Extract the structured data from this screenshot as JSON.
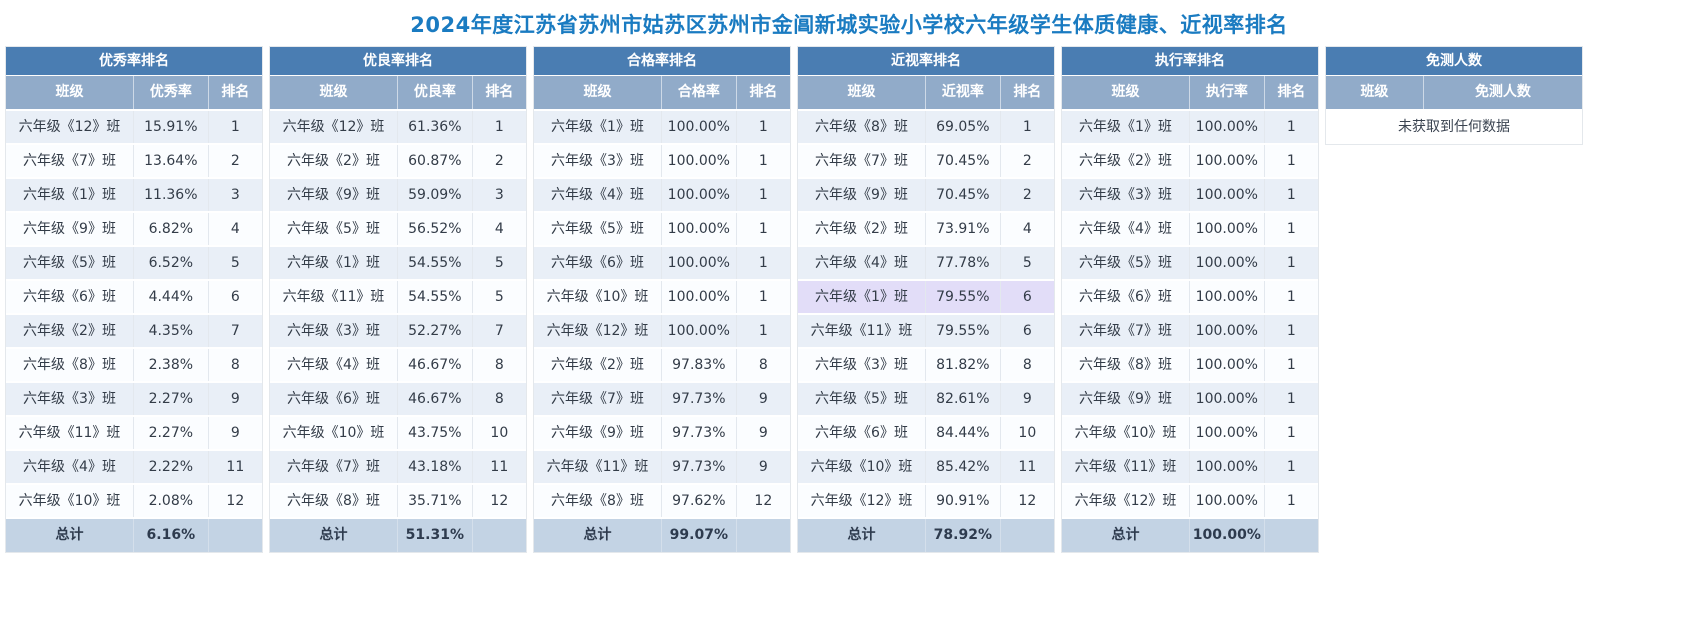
{
  "page_title": "2024年度江苏省苏州市姑苏区苏州市金阊新城实验小学校六年级学生体质健康、近视率排名",
  "colors": {
    "title_text": "#1a7bc1",
    "table_header_bg": "#4a7db2",
    "table_subheader_bg": "#91abc9",
    "row_odd_bg": "#e9eff7",
    "row_even_bg": "#fbfdff",
    "total_row_bg": "#c3d3e4",
    "highlight_row_bg": "#e2ddf8"
  },
  "total_label": "总计",
  "tables": [
    {
      "title": "优秀率排名",
      "columns": [
        "班级",
        "优秀率",
        "排名"
      ],
      "rows": [
        [
          "六年级《12》班",
          "15.91%",
          "1"
        ],
        [
          "六年级《7》班",
          "13.64%",
          "2"
        ],
        [
          "六年级《1》班",
          "11.36%",
          "3"
        ],
        [
          "六年级《9》班",
          "6.82%",
          "4"
        ],
        [
          "六年级《5》班",
          "6.52%",
          "5"
        ],
        [
          "六年级《6》班",
          "4.44%",
          "6"
        ],
        [
          "六年级《2》班",
          "4.35%",
          "7"
        ],
        [
          "六年级《8》班",
          "2.38%",
          "8"
        ],
        [
          "六年级《3》班",
          "2.27%",
          "9"
        ],
        [
          "六年级《11》班",
          "2.27%",
          "9"
        ],
        [
          "六年级《4》班",
          "2.22%",
          "11"
        ],
        [
          "六年级《10》班",
          "2.08%",
          "12"
        ]
      ],
      "total": [
        "总计",
        "6.16%",
        ""
      ],
      "highlight_row_index": null
    },
    {
      "title": "优良率排名",
      "columns": [
        "班级",
        "优良率",
        "排名"
      ],
      "rows": [
        [
          "六年级《12》班",
          "61.36%",
          "1"
        ],
        [
          "六年级《2》班",
          "60.87%",
          "2"
        ],
        [
          "六年级《9》班",
          "59.09%",
          "3"
        ],
        [
          "六年级《5》班",
          "56.52%",
          "4"
        ],
        [
          "六年级《1》班",
          "54.55%",
          "5"
        ],
        [
          "六年级《11》班",
          "54.55%",
          "5"
        ],
        [
          "六年级《3》班",
          "52.27%",
          "7"
        ],
        [
          "六年级《4》班",
          "46.67%",
          "8"
        ],
        [
          "六年级《6》班",
          "46.67%",
          "8"
        ],
        [
          "六年级《10》班",
          "43.75%",
          "10"
        ],
        [
          "六年级《7》班",
          "43.18%",
          "11"
        ],
        [
          "六年级《8》班",
          "35.71%",
          "12"
        ]
      ],
      "total": [
        "总计",
        "51.31%",
        ""
      ],
      "highlight_row_index": null
    },
    {
      "title": "合格率排名",
      "columns": [
        "班级",
        "合格率",
        "排名"
      ],
      "rows": [
        [
          "六年级《1》班",
          "100.00%",
          "1"
        ],
        [
          "六年级《3》班",
          "100.00%",
          "1"
        ],
        [
          "六年级《4》班",
          "100.00%",
          "1"
        ],
        [
          "六年级《5》班",
          "100.00%",
          "1"
        ],
        [
          "六年级《6》班",
          "100.00%",
          "1"
        ],
        [
          "六年级《10》班",
          "100.00%",
          "1"
        ],
        [
          "六年级《12》班",
          "100.00%",
          "1"
        ],
        [
          "六年级《2》班",
          "97.83%",
          "8"
        ],
        [
          "六年级《7》班",
          "97.73%",
          "9"
        ],
        [
          "六年级《9》班",
          "97.73%",
          "9"
        ],
        [
          "六年级《11》班",
          "97.73%",
          "9"
        ],
        [
          "六年级《8》班",
          "97.62%",
          "12"
        ]
      ],
      "total": [
        "总计",
        "99.07%",
        ""
      ],
      "highlight_row_index": null
    },
    {
      "title": "近视率排名",
      "columns": [
        "班级",
        "近视率",
        "排名"
      ],
      "rows": [
        [
          "六年级《8》班",
          "69.05%",
          "1"
        ],
        [
          "六年级《7》班",
          "70.45%",
          "2"
        ],
        [
          "六年级《9》班",
          "70.45%",
          "2"
        ],
        [
          "六年级《2》班",
          "73.91%",
          "4"
        ],
        [
          "六年级《4》班",
          "77.78%",
          "5"
        ],
        [
          "六年级《1》班",
          "79.55%",
          "6"
        ],
        [
          "六年级《11》班",
          "79.55%",
          "6"
        ],
        [
          "六年级《3》班",
          "81.82%",
          "8"
        ],
        [
          "六年级《5》班",
          "82.61%",
          "9"
        ],
        [
          "六年级《6》班",
          "84.44%",
          "10"
        ],
        [
          "六年级《10》班",
          "85.42%",
          "11"
        ],
        [
          "六年级《12》班",
          "90.91%",
          "12"
        ]
      ],
      "total": [
        "总计",
        "78.92%",
        ""
      ],
      "highlight_row_index": 5
    },
    {
      "title": "执行率排名",
      "columns": [
        "班级",
        "执行率",
        "排名"
      ],
      "rows": [
        [
          "六年级《1》班",
          "100.00%",
          "1"
        ],
        [
          "六年级《2》班",
          "100.00%",
          "1"
        ],
        [
          "六年级《3》班",
          "100.00%",
          "1"
        ],
        [
          "六年级《4》班",
          "100.00%",
          "1"
        ],
        [
          "六年级《5》班",
          "100.00%",
          "1"
        ],
        [
          "六年级《6》班",
          "100.00%",
          "1"
        ],
        [
          "六年级《7》班",
          "100.00%",
          "1"
        ],
        [
          "六年级《8》班",
          "100.00%",
          "1"
        ],
        [
          "六年级《9》班",
          "100.00%",
          "1"
        ],
        [
          "六年级《10》班",
          "100.00%",
          "1"
        ],
        [
          "六年级《11》班",
          "100.00%",
          "1"
        ],
        [
          "六年级《12》班",
          "100.00%",
          "1"
        ]
      ],
      "total": [
        "总计",
        "100.00%",
        ""
      ],
      "highlight_row_index": null
    },
    {
      "title": "免测人数",
      "columns": [
        "班级",
        "免测人数"
      ],
      "rows": [],
      "no_data_text": "未获取到任何数据",
      "total": null,
      "highlight_row_index": null
    }
  ]
}
